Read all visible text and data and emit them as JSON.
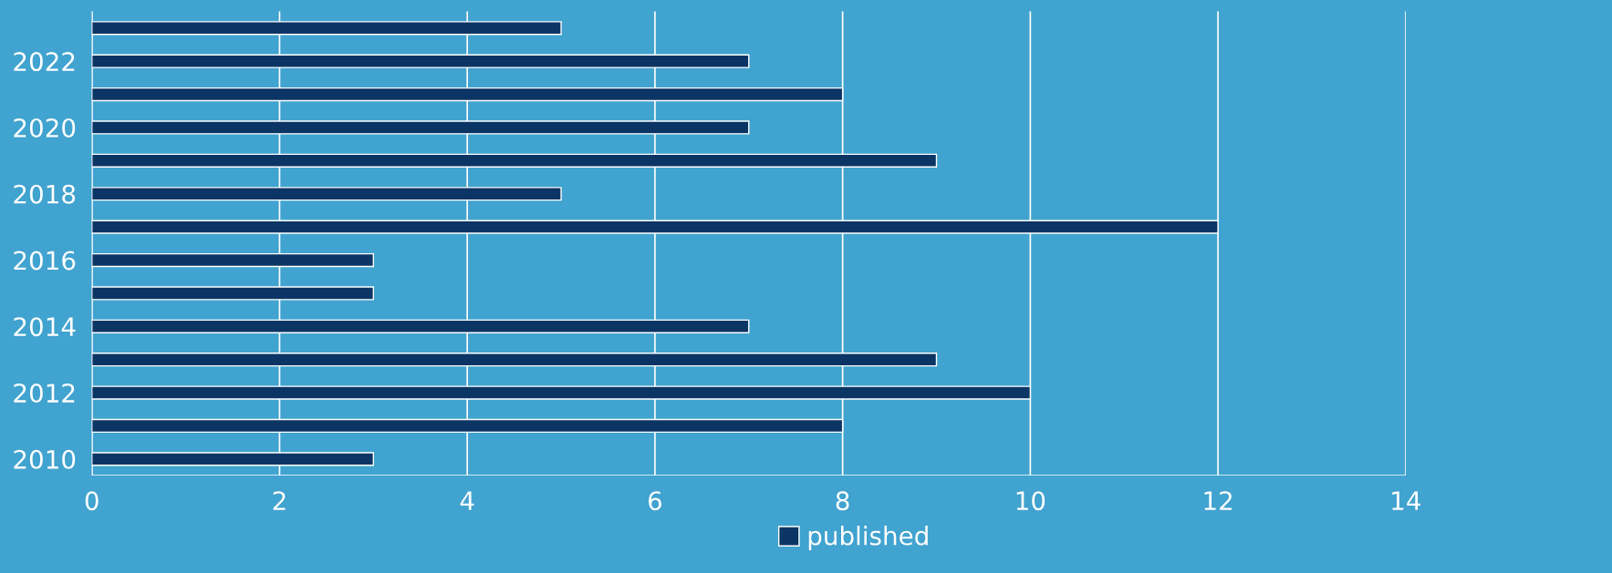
{
  "chart_data": {
    "type": "bar",
    "orientation": "horizontal",
    "categories": [
      null,
      "2022",
      null,
      "2020",
      null,
      "2018",
      null,
      "2016",
      null,
      "2014",
      null,
      "2012",
      null,
      "2010"
    ],
    "series": [
      {
        "name": "published",
        "color": "#0b3564",
        "values": [
          5,
          7,
          8,
          7,
          9,
          5,
          12,
          3,
          3,
          7,
          9,
          10,
          8,
          3
        ]
      }
    ],
    "xlim": [
      0,
      14
    ],
    "xticks": [
      0,
      2,
      4,
      6,
      8,
      10,
      12,
      14
    ],
    "grid": "x",
    "legend": "bottom"
  }
}
